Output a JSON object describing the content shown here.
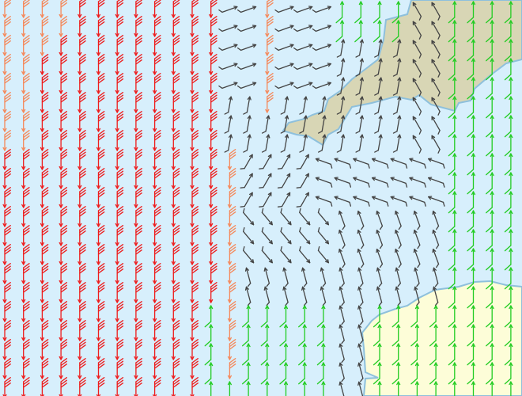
{
  "map": {
    "sea_color": "#d7effc",
    "coast_color": "#8ec0dc",
    "land_north_color": "#d8d6b5",
    "land_south_color": "#fdfdd8",
    "barb_colors": {
      "strong": "#ee1c1c",
      "moderate_strong": "#f5885a",
      "light": "#444444",
      "moderate": "#22cc22"
    },
    "layer": "wind-barbs"
  }
}
